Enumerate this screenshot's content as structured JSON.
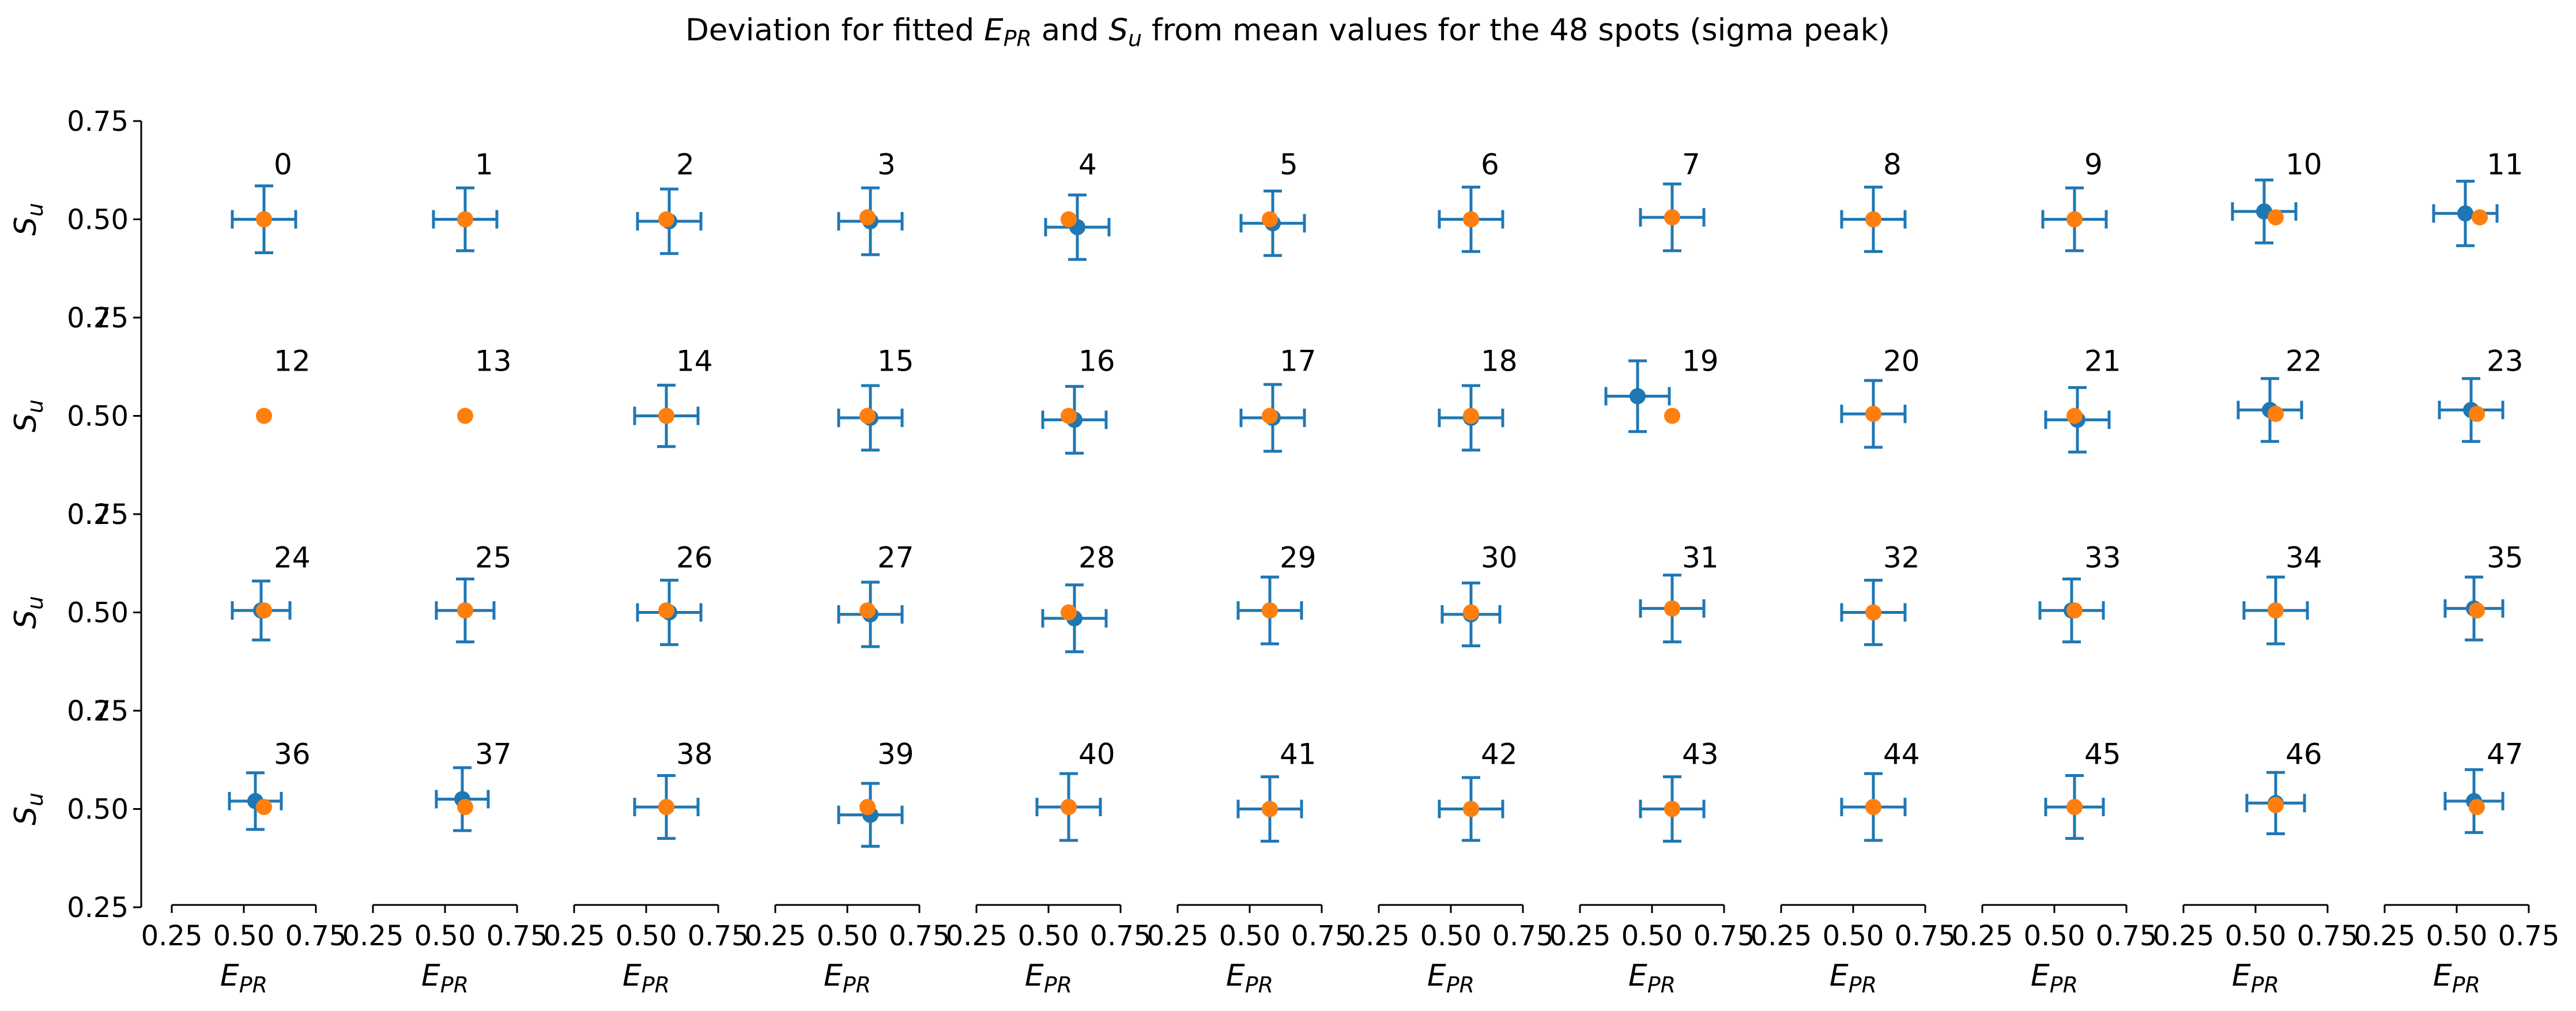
{
  "chart_data": {
    "type": "scatter",
    "title_parts": [
      "Deviation for fitted ",
      "E",
      "PR",
      " and ",
      "S",
      "u",
      " from mean values for the 48 spots (sigma peak)"
    ],
    "xlabel": {
      "main": "E",
      "sub": "PR"
    },
    "ylabel": {
      "main": "S",
      "sub": "u"
    },
    "xlim": [
      0.25,
      0.75
    ],
    "ylim": [
      0.25,
      0.75
    ],
    "x_ticks": [
      "0.25",
      "0.50",
      "0.75"
    ],
    "y_ticks": [
      "0.25",
      "0.50",
      "0.75"
    ],
    "grid": false,
    "rows": 4,
    "cols": 12,
    "colors": {
      "fitted": "#1f77b4",
      "mean": "#ff7f0e"
    },
    "spots": [
      {
        "label": "0",
        "fit": [
          0.57,
          0.5
        ],
        "err": [
          0.11,
          0.085
        ],
        "mean": [
          0.57,
          0.5
        ]
      },
      {
        "label": "1",
        "fit": [
          0.57,
          0.5
        ],
        "err": [
          0.11,
          0.08
        ],
        "mean": [
          0.57,
          0.5
        ]
      },
      {
        "label": "2",
        "fit": [
          0.58,
          0.495
        ],
        "err": [
          0.11,
          0.082
        ],
        "mean": [
          0.57,
          0.5
        ]
      },
      {
        "label": "3",
        "fit": [
          0.58,
          0.495
        ],
        "err": [
          0.11,
          0.085
        ],
        "mean": [
          0.57,
          0.505
        ]
      },
      {
        "label": "4",
        "fit": [
          0.6,
          0.48
        ],
        "err": [
          0.11,
          0.082
        ],
        "mean": [
          0.57,
          0.5
        ]
      },
      {
        "label": "5",
        "fit": [
          0.58,
          0.49
        ],
        "err": [
          0.11,
          0.082
        ],
        "mean": [
          0.57,
          0.5
        ]
      },
      {
        "label": "6",
        "fit": [
          0.57,
          0.5
        ],
        "err": [
          0.11,
          0.082
        ],
        "mean": [
          0.57,
          0.5
        ]
      },
      {
        "label": "7",
        "fit": [
          0.57,
          0.505
        ],
        "err": [
          0.11,
          0.085
        ],
        "mean": [
          0.57,
          0.505
        ]
      },
      {
        "label": "8",
        "fit": [
          0.57,
          0.5
        ],
        "err": [
          0.11,
          0.082
        ],
        "mean": [
          0.57,
          0.5
        ]
      },
      {
        "label": "9",
        "fit": [
          0.57,
          0.5
        ],
        "err": [
          0.11,
          0.08
        ],
        "mean": [
          0.57,
          0.5
        ]
      },
      {
        "label": "10",
        "fit": [
          0.53,
          0.52
        ],
        "err": [
          0.11,
          0.08
        ],
        "mean": [
          0.57,
          0.505
        ]
      },
      {
        "label": "11",
        "fit": [
          0.53,
          0.515
        ],
        "err": [
          0.11,
          0.082
        ],
        "mean": [
          0.58,
          0.505
        ]
      },
      {
        "label": "12",
        "mean": [
          0.57,
          0.5
        ]
      },
      {
        "label": "13",
        "mean": [
          0.57,
          0.5
        ]
      },
      {
        "label": "14",
        "fit": [
          0.57,
          0.5
        ],
        "err": [
          0.11,
          0.078
        ],
        "mean": [
          0.57,
          0.5
        ]
      },
      {
        "label": "15",
        "fit": [
          0.58,
          0.495
        ],
        "err": [
          0.11,
          0.082
        ],
        "mean": [
          0.57,
          0.5
        ]
      },
      {
        "label": "16",
        "fit": [
          0.59,
          0.49
        ],
        "err": [
          0.11,
          0.085
        ],
        "mean": [
          0.57,
          0.5
        ]
      },
      {
        "label": "17",
        "fit": [
          0.58,
          0.495
        ],
        "err": [
          0.11,
          0.085
        ],
        "mean": [
          0.57,
          0.5
        ]
      },
      {
        "label": "18",
        "fit": [
          0.57,
          0.495
        ],
        "err": [
          0.11,
          0.082
        ],
        "mean": [
          0.57,
          0.5
        ]
      },
      {
        "label": "19",
        "fit": [
          0.45,
          0.55
        ],
        "err": [
          0.11,
          0.09
        ],
        "mean": [
          0.57,
          0.5
        ]
      },
      {
        "label": "20",
        "fit": [
          0.57,
          0.505
        ],
        "err": [
          0.11,
          0.085
        ],
        "mean": [
          0.57,
          0.505
        ]
      },
      {
        "label": "21",
        "fit": [
          0.58,
          0.49
        ],
        "err": [
          0.11,
          0.082
        ],
        "mean": [
          0.57,
          0.5
        ]
      },
      {
        "label": "22",
        "fit": [
          0.55,
          0.515
        ],
        "err": [
          0.11,
          0.08
        ],
        "mean": [
          0.57,
          0.505
        ]
      },
      {
        "label": "23",
        "fit": [
          0.55,
          0.515
        ],
        "err": [
          0.11,
          0.08
        ],
        "mean": [
          0.57,
          0.505
        ]
      },
      {
        "label": "24",
        "fit": [
          0.56,
          0.505
        ],
        "err": [
          0.1,
          0.075
        ],
        "mean": [
          0.57,
          0.505
        ]
      },
      {
        "label": "25",
        "fit": [
          0.57,
          0.505
        ],
        "err": [
          0.1,
          0.08
        ],
        "mean": [
          0.57,
          0.505
        ]
      },
      {
        "label": "26",
        "fit": [
          0.58,
          0.5
        ],
        "err": [
          0.11,
          0.082
        ],
        "mean": [
          0.57,
          0.505
        ]
      },
      {
        "label": "27",
        "fit": [
          0.58,
          0.495
        ],
        "err": [
          0.11,
          0.082
        ],
        "mean": [
          0.57,
          0.505
        ]
      },
      {
        "label": "28",
        "fit": [
          0.59,
          0.485
        ],
        "err": [
          0.11,
          0.085
        ],
        "mean": [
          0.57,
          0.5
        ]
      },
      {
        "label": "29",
        "fit": [
          0.57,
          0.505
        ],
        "err": [
          0.11,
          0.085
        ],
        "mean": [
          0.57,
          0.505
        ]
      },
      {
        "label": "30",
        "fit": [
          0.57,
          0.495
        ],
        "err": [
          0.1,
          0.08
        ],
        "mean": [
          0.57,
          0.5
        ]
      },
      {
        "label": "31",
        "fit": [
          0.57,
          0.51
        ],
        "err": [
          0.11,
          0.085
        ],
        "mean": [
          0.57,
          0.51
        ]
      },
      {
        "label": "32",
        "fit": [
          0.57,
          0.5
        ],
        "err": [
          0.11,
          0.082
        ],
        "mean": [
          0.57,
          0.5
        ]
      },
      {
        "label": "33",
        "fit": [
          0.56,
          0.505
        ],
        "err": [
          0.11,
          0.08
        ],
        "mean": [
          0.57,
          0.505
        ]
      },
      {
        "label": "34",
        "fit": [
          0.57,
          0.505
        ],
        "err": [
          0.11,
          0.085
        ],
        "mean": [
          0.57,
          0.505
        ]
      },
      {
        "label": "35",
        "fit": [
          0.56,
          0.51
        ],
        "err": [
          0.1,
          0.08
        ],
        "mean": [
          0.57,
          0.505
        ]
      },
      {
        "label": "36",
        "fit": [
          0.54,
          0.52
        ],
        "err": [
          0.09,
          0.072
        ],
        "mean": [
          0.57,
          0.505
        ]
      },
      {
        "label": "37",
        "fit": [
          0.56,
          0.525
        ],
        "err": [
          0.09,
          0.08
        ],
        "mean": [
          0.57,
          0.505
        ]
      },
      {
        "label": "38",
        "fit": [
          0.57,
          0.505
        ],
        "err": [
          0.11,
          0.08
        ],
        "mean": [
          0.57,
          0.505
        ]
      },
      {
        "label": "39",
        "fit": [
          0.58,
          0.485
        ],
        "err": [
          0.11,
          0.08
        ],
        "mean": [
          0.57,
          0.505
        ]
      },
      {
        "label": "40",
        "fit": [
          0.57,
          0.505
        ],
        "err": [
          0.11,
          0.085
        ],
        "mean": [
          0.57,
          0.505
        ]
      },
      {
        "label": "41",
        "fit": [
          0.57,
          0.5
        ],
        "err": [
          0.11,
          0.082
        ],
        "mean": [
          0.57,
          0.5
        ]
      },
      {
        "label": "42",
        "fit": [
          0.57,
          0.5
        ],
        "err": [
          0.11,
          0.08
        ],
        "mean": [
          0.57,
          0.5
        ]
      },
      {
        "label": "43",
        "fit": [
          0.57,
          0.5
        ],
        "err": [
          0.11,
          0.082
        ],
        "mean": [
          0.57,
          0.5
        ]
      },
      {
        "label": "44",
        "fit": [
          0.57,
          0.505
        ],
        "err": [
          0.11,
          0.085
        ],
        "mean": [
          0.57,
          0.505
        ]
      },
      {
        "label": "45",
        "fit": [
          0.57,
          0.505
        ],
        "err": [
          0.1,
          0.08
        ],
        "mean": [
          0.57,
          0.505
        ]
      },
      {
        "label": "46",
        "fit": [
          0.57,
          0.515
        ],
        "err": [
          0.1,
          0.078
        ],
        "mean": [
          0.57,
          0.51
        ]
      },
      {
        "label": "47",
        "fit": [
          0.56,
          0.52
        ],
        "err": [
          0.1,
          0.08
        ],
        "mean": [
          0.57,
          0.505
        ]
      }
    ]
  }
}
